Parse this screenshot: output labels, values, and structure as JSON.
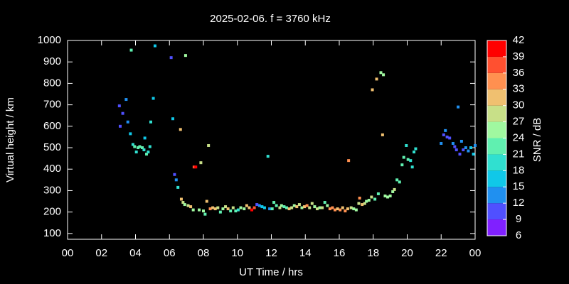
{
  "chart_data": {
    "type": "scatter",
    "title": "2025-02-06. f = 3760 kHz",
    "x_label": "UT Time / hrs",
    "y_label": "Virtual height / km",
    "xlim": [
      0,
      24
    ],
    "ylim": [
      73,
      1000
    ],
    "xticks": [
      {
        "value": 0,
        "label": "00"
      },
      {
        "value": 2,
        "label": "02"
      },
      {
        "value": 4,
        "label": "04"
      },
      {
        "value": 6,
        "label": "06"
      },
      {
        "value": 8,
        "label": "08"
      },
      10,
      12,
      14,
      16,
      18,
      20,
      22,
      {
        "value": 24,
        "label": "00"
      }
    ],
    "yticks": [
      100,
      200,
      300,
      400,
      500,
      600,
      700,
      800,
      900,
      1000
    ],
    "colorbar": {
      "label": "SNR / dB",
      "lim": [
        6,
        42
      ],
      "ticks": [
        6,
        9,
        12,
        15,
        18,
        21,
        24,
        27,
        30,
        33,
        36,
        39,
        42
      ],
      "colors": [
        "#8020ff",
        "#5050ff",
        "#2090f0",
        "#10c8e8",
        "#30e0d0",
        "#60f0b0",
        "#a0f8a0",
        "#c8e088",
        "#f0c070",
        "#ff9050",
        "#ff5030",
        "#ff0000"
      ]
    },
    "series": [
      {
        "x": [
          3.05,
          3.1,
          3.25,
          3.45,
          3.55,
          3.7,
          3.75,
          3.85,
          3.95,
          4.05,
          4.15,
          4.25,
          4.4,
          4.5,
          4.55,
          4.65,
          4.75,
          4.85,
          4.9,
          5.05,
          5.15,
          6.1,
          6.2,
          6.3,
          6.4,
          6.5,
          6.65,
          6.7,
          6.8,
          6.9,
          6.95,
          7.1,
          7.25,
          7.4,
          7.45,
          7.55,
          7.75,
          7.85,
          8.0,
          8.1,
          8.2,
          8.3,
          8.4,
          8.55,
          8.7,
          8.85,
          9.0,
          9.15,
          9.3,
          9.45,
          9.6,
          9.75,
          9.9,
          10.05,
          10.2,
          10.4,
          10.55,
          10.7,
          10.85,
          11.0,
          11.15,
          11.3,
          11.45,
          11.6,
          11.8,
          11.9,
          12.05,
          12.15,
          12.3,
          12.5,
          12.6,
          12.75,
          12.9,
          13.05,
          13.2,
          13.35,
          13.5,
          13.65,
          13.8,
          13.95,
          14.1,
          14.25,
          14.4,
          14.55,
          14.7,
          14.85,
          15.0,
          15.15,
          15.3,
          15.45,
          15.6,
          15.75,
          15.9,
          16.05,
          16.2,
          16.35,
          16.5,
          16.55,
          16.7,
          16.85,
          17.0,
          17.15,
          17.2,
          17.35,
          17.5,
          17.6,
          17.75,
          17.9,
          17.95,
          18.1,
          18.2,
          18.3,
          18.45,
          18.6,
          18.55,
          18.7,
          18.85,
          19.0,
          19.15,
          19.25,
          19.4,
          19.55,
          19.7,
          19.8,
          19.95,
          20.05,
          20.2,
          20.3,
          20.4,
          20.5,
          22.0,
          22.15,
          22.25,
          22.35,
          22.5,
          22.7,
          22.8,
          22.9,
          23.0,
          23.1,
          23.2,
          23.3,
          23.45,
          23.6,
          23.75,
          23.9,
          24.0
        ],
        "values": [
          695,
          600,
          660,
          725,
          620,
          565,
          955,
          515,
          505,
          480,
          500,
          505,
          500,
          490,
          545,
          470,
          480,
          505,
          620,
          730,
          975,
          920,
          635,
          375,
          350,
          315,
          585,
          260,
          245,
          235,
          930,
          230,
          225,
          210,
          410,
          410,
          210,
          430,
          205,
          190,
          250,
          510,
          215,
          220,
          215,
          220,
          200,
          215,
          225,
          215,
          205,
          220,
          205,
          210,
          220,
          215,
          230,
          220,
          210,
          220,
          235,
          230,
          225,
          220,
          460,
          215,
          215,
          245,
          230,
          220,
          230,
          225,
          220,
          215,
          220,
          230,
          225,
          235,
          220,
          225,
          230,
          220,
          240,
          225,
          215,
          220,
          220,
          245,
          230,
          215,
          220,
          210,
          215,
          210,
          220,
          205,
          215,
          440,
          220,
          215,
          210,
          240,
          265,
          235,
          240,
          250,
          255,
          270,
          770,
          260,
          820,
          285,
          850,
          840,
          560,
          275,
          270,
          275,
          295,
          305,
          350,
          340,
          420,
          455,
          510,
          445,
          440,
          410,
          480,
          495,
          520,
          560,
          580,
          550,
          545,
          520,
          505,
          490,
          690,
          470,
          530,
          490,
          500,
          485,
          500,
          470,
          510
        ],
        "snr": [
          11,
          10,
          10,
          13,
          14,
          17,
          21,
          20,
          21,
          20,
          22,
          21,
          22,
          20,
          17,
          21,
          20,
          18,
          18,
          17,
          16,
          11,
          15,
          11,
          12,
          19,
          30,
          32,
          29,
          25,
          26,
          27,
          30,
          24,
          36,
          39,
          24,
          27,
          24,
          23,
          31,
          27,
          33,
          31,
          30,
          29,
          22,
          24,
          27,
          30,
          23,
          29,
          21,
          20,
          25,
          26,
          30,
          31,
          39,
          36,
          11,
          13,
          15,
          17,
          19,
          12,
          23,
          21,
          22,
          27,
          24,
          21,
          23,
          30,
          28,
          25,
          31,
          27,
          26,
          31,
          33,
          29,
          28,
          24,
          27,
          25,
          28,
          22,
          24,
          33,
          35,
          34,
          32,
          33,
          30,
          34,
          31,
          35,
          27,
          26,
          25,
          29,
          33,
          31,
          27,
          25,
          24,
          27,
          31,
          23,
          30,
          22,
          24,
          25,
          32,
          25,
          24,
          25,
          26,
          28,
          21,
          22,
          23,
          22,
          19,
          21,
          20,
          19,
          20,
          19,
          12,
          10,
          12,
          11,
          10,
          12,
          11,
          10,
          12,
          10,
          13,
          11,
          12,
          12,
          15,
          16,
          14
        ]
      }
    ]
  }
}
